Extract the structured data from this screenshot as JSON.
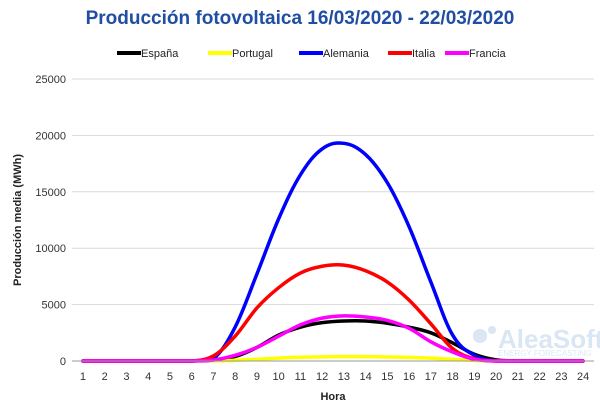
{
  "chart_data": {
    "type": "line",
    "title": "Producción fotovoltaica 16/03/2020 - 22/03/2020",
    "xlabel": "Hora",
    "ylabel": "Producción media (MWh)",
    "x": [
      1,
      2,
      3,
      4,
      5,
      6,
      7,
      8,
      9,
      10,
      11,
      12,
      13,
      14,
      15,
      16,
      17,
      18,
      19,
      20,
      21,
      22,
      23,
      24
    ],
    "ylim": [
      0,
      25000
    ],
    "yticks": [
      0,
      5000,
      10000,
      15000,
      20000,
      25000
    ],
    "grid": "horizontal",
    "legend_position": "top",
    "series": [
      {
        "name": "España",
        "color": "#000000",
        "values": [
          0,
          0,
          0,
          0,
          0,
          0,
          100,
          400,
          1200,
          2300,
          3000,
          3400,
          3550,
          3550,
          3350,
          3000,
          2500,
          1600,
          600,
          100,
          0,
          0,
          0,
          0
        ]
      },
      {
        "name": "Portugal",
        "color": "#ffff00",
        "values": [
          0,
          0,
          0,
          0,
          0,
          0,
          20,
          60,
          150,
          260,
          330,
          370,
          390,
          380,
          360,
          320,
          250,
          150,
          50,
          10,
          0,
          0,
          0,
          0
        ]
      },
      {
        "name": "Alemania",
        "color": "#0000ff",
        "values": [
          0,
          0,
          0,
          0,
          0,
          0,
          200,
          3000,
          7700,
          12600,
          16500,
          18800,
          19300,
          18300,
          15800,
          11900,
          7000,
          2300,
          500,
          0,
          0,
          0,
          0,
          0
        ]
      },
      {
        "name": "Italia",
        "color": "#ff0000",
        "values": [
          0,
          0,
          0,
          0,
          0,
          0,
          450,
          2200,
          4700,
          6500,
          7800,
          8400,
          8500,
          8000,
          7000,
          5400,
          3300,
          1100,
          200,
          0,
          0,
          0,
          0,
          0
        ]
      },
      {
        "name": "Francia",
        "color": "#ff00ff",
        "values": [
          0,
          0,
          0,
          0,
          0,
          0,
          80,
          500,
          1200,
          2200,
          3200,
          3800,
          4000,
          3900,
          3600,
          2900,
          1700,
          800,
          150,
          0,
          0,
          0,
          0,
          0
        ]
      }
    ]
  },
  "watermark": {
    "brand": "AleaSoft",
    "tagline": "ENERGY FORECASTING"
  }
}
